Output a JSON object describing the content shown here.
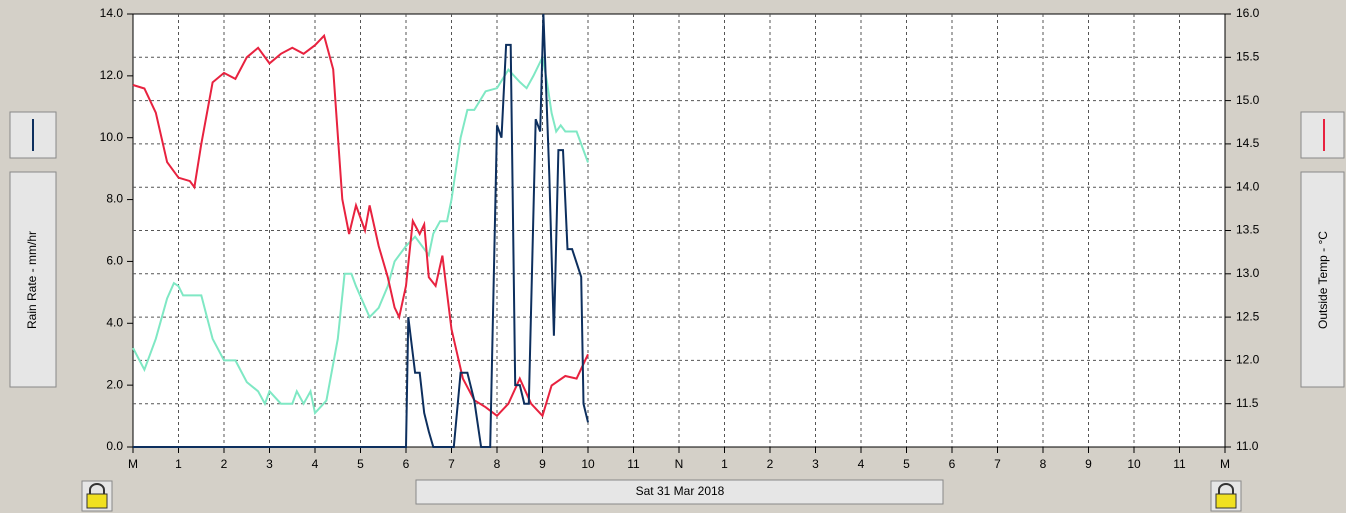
{
  "chart_data": {
    "type": "line",
    "title": "Sat 31 Mar 2018",
    "xlim": [
      0,
      24
    ],
    "xticks": [
      {
        "value": 0,
        "label": "M"
      },
      1,
      2,
      3,
      4,
      5,
      6,
      7,
      8,
      9,
      10,
      11,
      {
        "value": 12,
        "label": "N"
      },
      {
        "value": 13,
        "label": "1"
      },
      {
        "value": 14,
        "label": "2"
      },
      {
        "value": 15,
        "label": "3"
      },
      {
        "value": 16,
        "label": "4"
      },
      {
        "value": 17,
        "label": "5"
      },
      {
        "value": 18,
        "label": "6"
      },
      {
        "value": 19,
        "label": "7"
      },
      {
        "value": 20,
        "label": "8"
      },
      {
        "value": 21,
        "label": "9"
      },
      {
        "value": 22,
        "label": "10"
      },
      {
        "value": 23,
        "label": "11"
      },
      {
        "value": 24,
        "label": "M"
      }
    ],
    "ylim": [
      0,
      14
    ],
    "yticks": [
      {
        "value": 0,
        "label": "0.0"
      },
      {
        "value": 2,
        "label": "2.0"
      },
      {
        "value": 4,
        "label": "4.0"
      },
      {
        "value": 6,
        "label": "6.0"
      },
      {
        "value": 8,
        "label": "8.0"
      },
      {
        "value": 10,
        "label": "10.0"
      },
      {
        "value": 12,
        "label": "12.0"
      },
      {
        "value": 14,
        "label": "14.0"
      }
    ],
    "y2lim": [
      11,
      16
    ],
    "y2ticks": [
      {
        "value": 11,
        "label": "11.0"
      },
      11.5,
      {
        "value": 12,
        "label": "12.0"
      },
      12.5,
      {
        "value": 13,
        "label": "13.0"
      },
      13.5,
      {
        "value": 14,
        "label": "14.0"
      },
      14.5,
      {
        "value": 15,
        "label": "15.0"
      },
      15.5,
      {
        "value": 16,
        "label": "16.0"
      }
    ],
    "grid": true,
    "series": [
      {
        "name": "Rain Rate - mm/hr",
        "color": "#0d2f5e",
        "axis": "y",
        "x": [
          0,
          6.0,
          6.05,
          6.2,
          6.3,
          6.4,
          6.5,
          6.6,
          7.05,
          7.2,
          7.35,
          7.5,
          7.65,
          7.85,
          8.0,
          8.1,
          8.2,
          8.3,
          8.4,
          8.5,
          8.6,
          8.7,
          8.85,
          8.95,
          9.02,
          9.15,
          9.25,
          9.35,
          9.45,
          9.55,
          9.65,
          9.85,
          9.9,
          10.0
        ],
        "values": [
          0,
          0,
          4.2,
          2.4,
          2.4,
          1.1,
          0.5,
          0,
          0,
          2.4,
          2.4,
          1.5,
          0,
          0,
          10.4,
          10.0,
          13.0,
          13.0,
          2.0,
          2.0,
          1.4,
          1.4,
          10.6,
          10.2,
          14.0,
          8.8,
          3.6,
          9.6,
          9.6,
          6.4,
          6.4,
          5.5,
          1.4,
          0.8
        ]
      },
      {
        "name": "Outside Temp - °C",
        "color": "#e8223f",
        "axis": "y2",
        "x": [
          0,
          0.25,
          0.5,
          0.75,
          1.0,
          1.25,
          1.35,
          1.5,
          1.75,
          2.0,
          2.25,
          2.5,
          2.75,
          3.0,
          3.25,
          3.5,
          3.75,
          4.0,
          4.2,
          4.4,
          4.6,
          4.75,
          4.9,
          5.1,
          5.2,
          5.4,
          5.6,
          5.75,
          5.85,
          6.0,
          6.15,
          6.3,
          6.4,
          6.5,
          6.65,
          6.8,
          7.0,
          7.25,
          7.5,
          7.75,
          8.0,
          8.25,
          8.5,
          8.75,
          9.0,
          9.2,
          9.5,
          9.75,
          10.0
        ],
        "values": [
          15.18,
          15.14,
          14.86,
          14.29,
          14.11,
          14.07,
          14.0,
          14.5,
          15.21,
          15.32,
          15.25,
          15.5,
          15.61,
          15.43,
          15.54,
          15.61,
          15.54,
          15.64,
          15.75,
          15.36,
          13.86,
          13.46,
          13.79,
          13.5,
          13.79,
          13.32,
          12.96,
          12.61,
          12.5,
          12.86,
          13.61,
          13.46,
          13.57,
          12.96,
          12.86,
          13.21,
          12.36,
          11.79,
          11.54,
          11.46,
          11.36,
          11.5,
          11.79,
          11.5,
          11.36,
          11.71,
          11.82,
          11.79,
          12.07
        ]
      },
      {
        "color": "#7fe8c4",
        "axis": "y",
        "x": [
          0,
          0.25,
          0.5,
          0.75,
          0.9,
          1.0,
          1.1,
          1.5,
          1.75,
          2.0,
          2.25,
          2.5,
          2.75,
          2.9,
          3.0,
          3.25,
          3.5,
          3.6,
          3.75,
          3.9,
          4.0,
          4.25,
          4.5,
          4.65,
          4.8,
          4.9,
          5.2,
          5.4,
          5.6,
          5.75,
          6.0,
          6.2,
          6.5,
          6.6,
          6.75,
          6.9,
          7.0,
          7.2,
          7.35,
          7.5,
          7.75,
          8.0,
          8.25,
          8.5,
          8.65,
          8.8,
          9.0,
          9.1,
          9.2,
          9.3,
          9.4,
          9.5,
          9.75,
          10.0
        ],
        "values": [
          3.2,
          2.5,
          3.5,
          4.8,
          5.3,
          5.2,
          4.9,
          4.9,
          3.5,
          2.8,
          2.8,
          2.1,
          1.8,
          1.4,
          1.8,
          1.4,
          1.4,
          1.8,
          1.4,
          1.8,
          1.1,
          1.5,
          3.5,
          5.6,
          5.6,
          5.2,
          4.2,
          4.5,
          5.2,
          6.0,
          6.5,
          6.8,
          6.2,
          6.9,
          7.3,
          7.3,
          8.0,
          10.0,
          10.9,
          10.9,
          11.5,
          11.6,
          12.2,
          11.8,
          11.6,
          12.0,
          12.6,
          11.8,
          10.8,
          10.2,
          10.4,
          10.2,
          10.2,
          9.2
        ]
      }
    ]
  }
}
